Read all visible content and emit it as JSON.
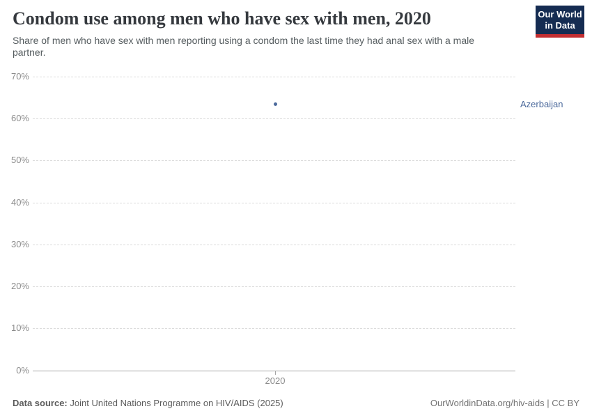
{
  "header": {
    "title": "Condom use among men who have sex with men, 2020",
    "subtitle": "Share of men who have sex with men reporting using a condom the last time they had anal sex with a male partner.",
    "logo_line1": "Our World",
    "logo_line2": "in Data"
  },
  "chart_data": {
    "type": "scatter",
    "title": "Condom use among men who have sex with men, 2020",
    "xlabel": "",
    "ylabel": "",
    "x_ticks": [
      2020
    ],
    "y_ticks": [
      0,
      10,
      20,
      30,
      40,
      50,
      60,
      70
    ],
    "y_tick_suffix": "%",
    "ylim": [
      0,
      70
    ],
    "grid": "horizontal-dashed",
    "legend_position": "right-of-plot",
    "series": [
      {
        "name": "Azerbaijan",
        "color": "#4C6A9C",
        "x": [
          2020
        ],
        "values": [
          63.5
        ]
      }
    ]
  },
  "footer": {
    "source_label": "Data source:",
    "source_text": "Joint United Nations Programme on HIV/AIDS (2025)",
    "license_text": "OurWorldinData.org/hiv-aids | CC BY"
  },
  "colors": {
    "accent_blue": "#4C6A9C",
    "logo_navy": "#152C52",
    "logo_red": "#C32E31",
    "grid": "#dcdcdc",
    "axis": "#a5a5a5",
    "tick_text": "#8c8c8c"
  }
}
